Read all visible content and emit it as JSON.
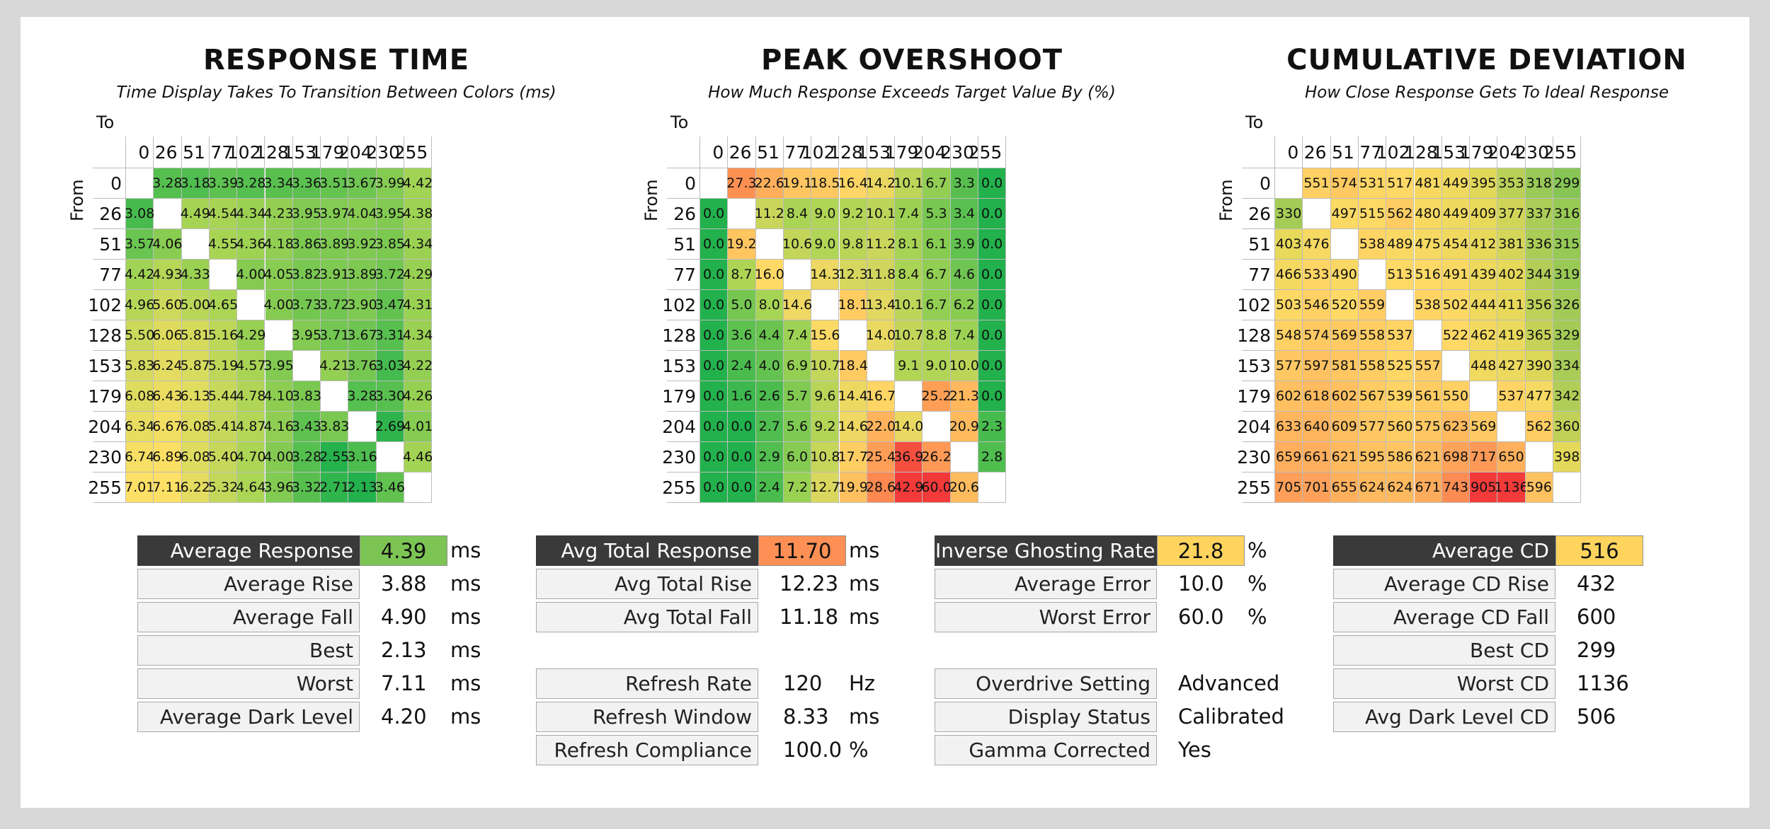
{
  "chart_data": [
    {
      "type": "heatmap",
      "title": "RESPONSE TIME",
      "subtitle": "Time Display Takes To Transition Between Colors (ms)",
      "xlabel": "To",
      "ylabel": "From",
      "x": [
        0,
        26,
        51,
        77,
        102,
        128,
        153,
        179,
        204,
        230,
        255
      ],
      "y": [
        0,
        26,
        51,
        77,
        102,
        128,
        153,
        179,
        204,
        230,
        255
      ],
      "values": [
        [
          null,
          3.28,
          3.18,
          3.39,
          3.28,
          3.34,
          3.36,
          3.51,
          3.67,
          3.99,
          4.42
        ],
        [
          3.08,
          null,
          4.49,
          4.54,
          4.34,
          4.23,
          3.95,
          3.97,
          4.04,
          3.95,
          4.38
        ],
        [
          3.57,
          4.06,
          null,
          4.55,
          4.36,
          4.18,
          3.86,
          3.89,
          3.92,
          3.85,
          4.34
        ],
        [
          4.42,
          4.93,
          4.33,
          null,
          4.0,
          4.05,
          3.82,
          3.91,
          3.89,
          3.72,
          4.29
        ],
        [
          4.96,
          5.6,
          5.0,
          4.65,
          null,
          4.0,
          3.73,
          3.72,
          3.9,
          3.47,
          4.31
        ],
        [
          5.5,
          6.06,
          5.81,
          5.16,
          4.29,
          null,
          3.95,
          3.71,
          3.67,
          3.31,
          4.34
        ],
        [
          5.83,
          6.24,
          5.87,
          5.19,
          4.57,
          3.95,
          null,
          4.21,
          3.76,
          3.03,
          4.22
        ],
        [
          6.08,
          6.43,
          6.13,
          5.44,
          4.78,
          4.1,
          3.83,
          null,
          3.28,
          3.3,
          4.26
        ],
        [
          6.34,
          6.67,
          6.08,
          5.41,
          4.87,
          4.16,
          3.43,
          3.83,
          null,
          2.69,
          4.01
        ],
        [
          6.74,
          6.89,
          6.08,
          5.4,
          4.7,
          4.0,
          3.28,
          2.55,
          3.16,
          null,
          4.46
        ],
        [
          7.01,
          7.11,
          6.22,
          5.32,
          4.64,
          3.96,
          3.32,
          2.71,
          2.13,
          3.46,
          null
        ]
      ],
      "decimals": 2,
      "color_scale": {
        "type": "linear",
        "stops": [
          [
            2.5,
            "#22b14c"
          ],
          [
            4.5,
            "#a6d454"
          ],
          [
            7.0,
            "#ffe066"
          ]
        ]
      }
    },
    {
      "type": "heatmap",
      "title": "PEAK OVERSHOOT",
      "subtitle": "How Much Response Exceeds Target Value By (%)",
      "xlabel": "To",
      "ylabel": "From",
      "x": [
        0,
        26,
        51,
        77,
        102,
        128,
        153,
        179,
        204,
        230,
        255
      ],
      "y": [
        0,
        26,
        51,
        77,
        102,
        128,
        153,
        179,
        204,
        230,
        255
      ],
      "values": [
        [
          null,
          27.3,
          22.6,
          19.1,
          18.5,
          16.4,
          14.2,
          10.1,
          6.7,
          3.3,
          0.0
        ],
        [
          0.0,
          null,
          11.2,
          8.4,
          9.0,
          9.2,
          10.1,
          7.4,
          5.3,
          3.4,
          0.0
        ],
        [
          0.0,
          19.2,
          null,
          10.6,
          9.0,
          9.8,
          11.2,
          8.1,
          6.1,
          3.9,
          0.0
        ],
        [
          0.0,
          8.7,
          16.0,
          null,
          14.3,
          12.3,
          11.8,
          8.4,
          6.7,
          4.6,
          0.0
        ],
        [
          0.0,
          5.0,
          8.0,
          14.6,
          null,
          18.1,
          13.4,
          10.1,
          6.7,
          6.2,
          0.0
        ],
        [
          0.0,
          3.6,
          4.4,
          7.4,
          15.6,
          null,
          14.0,
          10.7,
          8.8,
          7.4,
          0.0
        ],
        [
          0.0,
          2.4,
          4.0,
          6.9,
          10.7,
          18.4,
          null,
          9.1,
          9.0,
          10.0,
          0.0
        ],
        [
          0.0,
          1.6,
          2.6,
          5.7,
          9.6,
          14.4,
          16.7,
          null,
          25.2,
          21.3,
          0.0
        ],
        [
          0.0,
          0.0,
          2.7,
          5.6,
          9.2,
          14.6,
          22.0,
          14.0,
          null,
          20.9,
          2.3
        ],
        [
          0.0,
          0.0,
          2.9,
          6.0,
          10.8,
          17.7,
          25.4,
          36.9,
          26.2,
          null,
          2.8
        ],
        [
          0.0,
          0.0,
          2.4,
          7.2,
          12.7,
          19.9,
          28.6,
          42.9,
          60.0,
          20.6,
          null
        ]
      ],
      "decimals": 1,
      "color_scale": {
        "type": "linear",
        "stops": [
          [
            0,
            "#22b14c"
          ],
          [
            8,
            "#a6d454"
          ],
          [
            16,
            "#ffd966"
          ],
          [
            26,
            "#ff9a55"
          ],
          [
            40,
            "#f23a3a"
          ]
        ]
      }
    },
    {
      "type": "heatmap",
      "title": "CUMULATIVE DEVIATION",
      "subtitle": "How Close Response Gets To Ideal Response",
      "xlabel": "To",
      "ylabel": "From",
      "x": [
        0,
        26,
        51,
        77,
        102,
        128,
        153,
        179,
        204,
        230,
        255
      ],
      "y": [
        0,
        26,
        51,
        77,
        102,
        128,
        153,
        179,
        204,
        230,
        255
      ],
      "values": [
        [
          null,
          551,
          574,
          531,
          517,
          481,
          449,
          395,
          353,
          318,
          299
        ],
        [
          330,
          null,
          497,
          515,
          562,
          480,
          449,
          409,
          377,
          337,
          316
        ],
        [
          403,
          476,
          null,
          538,
          489,
          475,
          454,
          412,
          381,
          336,
          315
        ],
        [
          466,
          533,
          490,
          null,
          513,
          516,
          491,
          439,
          402,
          344,
          319
        ],
        [
          503,
          546,
          520,
          559,
          null,
          538,
          502,
          444,
          411,
          356,
          326
        ],
        [
          548,
          574,
          569,
          558,
          537,
          null,
          522,
          462,
          419,
          365,
          329
        ],
        [
          577,
          597,
          581,
          558,
          525,
          557,
          null,
          448,
          427,
          390,
          334
        ],
        [
          602,
          618,
          602,
          567,
          539,
          561,
          550,
          null,
          537,
          477,
          342
        ],
        [
          633,
          640,
          609,
          577,
          560,
          575,
          623,
          569,
          null,
          562,
          360
        ],
        [
          659,
          661,
          621,
          595,
          586,
          621,
          698,
          717,
          650,
          null,
          398
        ],
        [
          705,
          701,
          655,
          624,
          624,
          671,
          743,
          905,
          1136,
          596,
          null
        ]
      ],
      "decimals": 0,
      "color_scale": {
        "type": "linear",
        "stops": [
          [
            290,
            "#7fc454"
          ],
          [
            400,
            "#e6d95a"
          ],
          [
            520,
            "#ffd966"
          ],
          [
            700,
            "#ffa25a"
          ],
          [
            900,
            "#f23a3a"
          ]
        ]
      }
    }
  ],
  "stats": {
    "response": {
      "rows": [
        {
          "label": "Average Response",
          "value": "4.39",
          "unit": "ms",
          "header": true,
          "color": "#7cc554"
        },
        {
          "label": "Average Rise",
          "value": "3.88",
          "unit": "ms"
        },
        {
          "label": "Average Fall",
          "value": "4.90",
          "unit": "ms"
        },
        {
          "label": "Best",
          "value": "2.13",
          "unit": "ms"
        },
        {
          "label": "Worst",
          "value": "7.11",
          "unit": "ms"
        },
        {
          "label": "Average Dark Level",
          "value": "4.20",
          "unit": "ms"
        }
      ]
    },
    "total": {
      "rows": [
        {
          "label": "Avg Total Response",
          "value": "11.70",
          "unit": "ms",
          "header": true,
          "color": "#ff9055"
        },
        {
          "label": "Avg Total Rise",
          "value": "12.23",
          "unit": "ms"
        },
        {
          "label": "Avg Total Fall",
          "value": "11.18",
          "unit": "ms"
        }
      ],
      "refresh_rows": [
        {
          "label": "Refresh Rate",
          "value": "120",
          "unit": "Hz"
        },
        {
          "label": "Refresh Window",
          "value": "8.33",
          "unit": "ms"
        },
        {
          "label": "Refresh Compliance",
          "value": "100.0",
          "unit": "%"
        }
      ]
    },
    "overshoot": {
      "rows": [
        {
          "label": "Inverse Ghosting Rate",
          "value": "21.8",
          "unit": "%",
          "header": true,
          "color": "#ffd45e"
        },
        {
          "label": "Average Error",
          "value": "10.0",
          "unit": "%"
        },
        {
          "label": "Worst Error",
          "value": "60.0",
          "unit": "%"
        }
      ],
      "settings_rows": [
        {
          "label": "Overdrive Setting",
          "value": "Advanced"
        },
        {
          "label": "Display Status",
          "value": "Calibrated"
        },
        {
          "label": "Gamma Corrected",
          "value": "Yes"
        }
      ]
    },
    "cd": {
      "rows": [
        {
          "label": "Average CD",
          "value": "516",
          "header": true,
          "color": "#ffd45e"
        },
        {
          "label": "Average CD Rise",
          "value": "432"
        },
        {
          "label": "Average CD Fall",
          "value": "600"
        },
        {
          "label": "Best CD",
          "value": "299"
        },
        {
          "label": "Worst CD",
          "value": "1136"
        },
        {
          "label": "Avg Dark Level CD",
          "value": "506"
        }
      ]
    }
  }
}
